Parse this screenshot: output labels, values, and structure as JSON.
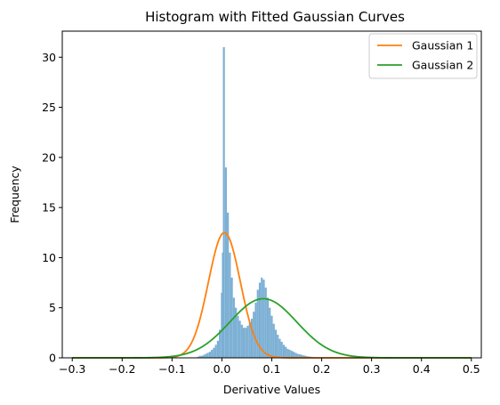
{
  "chart_data": {
    "type": "bar",
    "title": "Histogram with Fitted Gaussian Curves",
    "xlabel": "Derivative Values",
    "ylabel": "Frequency",
    "xlim": [
      -0.32,
      0.52
    ],
    "ylim": [
      0,
      32.6
    ],
    "xticks": [
      -0.3,
      -0.2,
      -0.1,
      0.0,
      0.1,
      0.2,
      0.3,
      0.4,
      0.5
    ],
    "xtick_labels": [
      "−0.3",
      "−0.2",
      "−0.1",
      "0.0",
      "0.1",
      "0.2",
      "0.3",
      "0.4",
      "0.5"
    ],
    "yticks": [
      0,
      5,
      10,
      15,
      20,
      25,
      30
    ],
    "ytick_labels": [
      "0",
      "5",
      "10",
      "15",
      "20",
      "25",
      "30"
    ],
    "grid": false,
    "legend_position": "top-right",
    "histogram": {
      "color": "#7bafd4",
      "bin_width": 0.0039,
      "bins": [
        [
          -0.05,
          0.1
        ],
        [
          -0.046,
          0.2
        ],
        [
          -0.042,
          0.2
        ],
        [
          -0.038,
          0.3
        ],
        [
          -0.034,
          0.4
        ],
        [
          -0.03,
          0.5
        ],
        [
          -0.026,
          0.6
        ],
        [
          -0.022,
          0.8
        ],
        [
          -0.018,
          1.0
        ],
        [
          -0.014,
          1.3
        ],
        [
          -0.01,
          1.7
        ],
        [
          -0.006,
          2.8
        ],
        [
          -0.002,
          6.5
        ],
        [
          0.0,
          10.5
        ],
        [
          0.002,
          31.0
        ],
        [
          0.006,
          19.0
        ],
        [
          0.01,
          14.5
        ],
        [
          0.014,
          10.5
        ],
        [
          0.018,
          8.0
        ],
        [
          0.022,
          6.0
        ],
        [
          0.026,
          5.0
        ],
        [
          0.03,
          4.2
        ],
        [
          0.034,
          3.7
        ],
        [
          0.038,
          3.3
        ],
        [
          0.042,
          3.0
        ],
        [
          0.046,
          3.0
        ],
        [
          0.05,
          3.2
        ],
        [
          0.054,
          3.5
        ],
        [
          0.058,
          3.9
        ],
        [
          0.062,
          4.6
        ],
        [
          0.066,
          5.5
        ],
        [
          0.07,
          6.8
        ],
        [
          0.074,
          7.5
        ],
        [
          0.078,
          8.0
        ],
        [
          0.082,
          7.8
        ],
        [
          0.086,
          7.0
        ],
        [
          0.09,
          6.0
        ],
        [
          0.094,
          5.0
        ],
        [
          0.098,
          4.2
        ],
        [
          0.102,
          3.4
        ],
        [
          0.106,
          2.8
        ],
        [
          0.11,
          2.3
        ],
        [
          0.114,
          1.9
        ],
        [
          0.118,
          1.6
        ],
        [
          0.122,
          1.3
        ],
        [
          0.126,
          1.1
        ],
        [
          0.13,
          0.9
        ],
        [
          0.134,
          0.8
        ],
        [
          0.138,
          0.7
        ],
        [
          0.142,
          0.6
        ],
        [
          0.146,
          0.5
        ],
        [
          0.15,
          0.4
        ],
        [
          0.154,
          0.35
        ],
        [
          0.158,
          0.3
        ],
        [
          0.162,
          0.25
        ],
        [
          0.166,
          0.2
        ],
        [
          0.17,
          0.15
        ],
        [
          0.174,
          0.12
        ],
        [
          0.178,
          0.1
        ]
      ]
    },
    "series": [
      {
        "name": "Gaussian 1",
        "color": "#ff7f0e",
        "mean": 0.005,
        "std": 0.032,
        "amplitude": 12.5
      },
      {
        "name": "Gaussian 2",
        "color": "#2ca02c",
        "mean": 0.083,
        "std": 0.067,
        "amplitude": 5.9
      }
    ],
    "curve_range": [
      -0.3,
      0.5
    ]
  }
}
